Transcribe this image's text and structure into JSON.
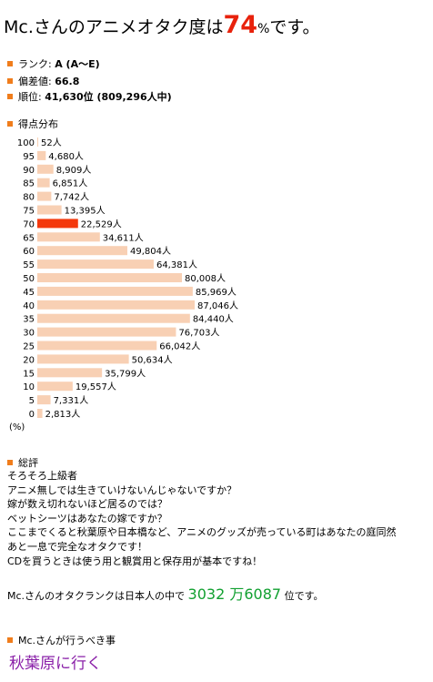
{
  "title": {
    "pre": "Mc.さんのアニメオタク度は",
    "percent": "74",
    "sign": "%",
    "post": "です。"
  },
  "stats": {
    "rank_label": "ランク:",
    "rank_value": "A (A〜E)",
    "dev_label": "偏差値:",
    "dev_value": "66.8",
    "order_label": "順位:",
    "order_value": "41,630位 (809,296人中)"
  },
  "chart_section_title": "得点分布",
  "chart_data": {
    "type": "bar",
    "orientation": "horizontal",
    "highlight_color": "#f4380c",
    "bar_color": "#f8d0b4",
    "highlight_category": "70",
    "unit": "(%)",
    "categories": [
      "100",
      "95",
      "90",
      "85",
      "80",
      "75",
      "70",
      "65",
      "60",
      "55",
      "50",
      "45",
      "40",
      "35",
      "30",
      "25",
      "20",
      "15",
      "10",
      "5",
      "0"
    ],
    "values": [
      52,
      4680,
      8909,
      6851,
      7742,
      13395,
      22529,
      34611,
      49804,
      64381,
      80008,
      85969,
      87046,
      84440,
      76703,
      66042,
      50634,
      35799,
      19557,
      7331,
      2813
    ],
    "labels": [
      "52人",
      "4,680人",
      "8,909人",
      "6,851人",
      "7,742人",
      "13,395人",
      "22,529人",
      "34,611人",
      "49,804人",
      "64,381人",
      "80,008人",
      "85,969人",
      "87,046人",
      "84,440人",
      "76,703人",
      "66,042人",
      "50,634人",
      "35,799人",
      "19,557人",
      "7,331人",
      "2,813人"
    ]
  },
  "summary": {
    "heading": "総評",
    "lines": [
      "そろそろ上級者",
      "アニメ無しでは生きていけないんじゃないですか？",
      "嫁が数え切れないほど居るのでは？",
      "ベットシーツはあなたの嫁ですか？",
      "ここまでくると秋葉原や日本橋など、アニメのグッズが売っている町はあなたの庭同然",
      "あと一息で完全なオタクです！",
      "CDを買うときは使う用と観賞用と保存用が基本ですね！"
    ]
  },
  "ranking": {
    "pre": "Mc.さんのオタクランクは日本人の中で",
    "value": "3032 万6087",
    "post": "位です。"
  },
  "todo": {
    "heading": "Mc.さんが行うべき事",
    "value": "秋葉原に行く"
  }
}
